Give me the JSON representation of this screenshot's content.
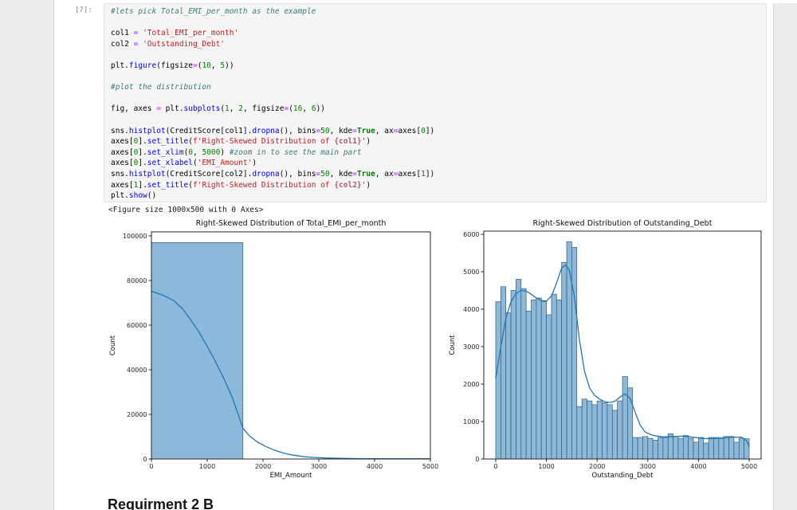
{
  "theme": {
    "margin_bg": "#ececec",
    "cell_bg": "#f5f5f5",
    "bar_fill": "#8cb9da",
    "bar_edge": "#3a5a70",
    "kde_line": "#1f77b4"
  },
  "notebook": {
    "execution_count": "[7]:",
    "figure_text": "<Figure size 1000x500 with 0 Axes>",
    "heading": "Requirment 2 B",
    "code_lines": [
      [
        [
          "com",
          "#lets pick Total_EMI_per_month as the example"
        ]
      ],
      [],
      [
        [
          "n",
          "col1 "
        ],
        [
          "op",
          "="
        ],
        [
          "n",
          " "
        ],
        [
          "s",
          "'Total_EMI_per_month'"
        ]
      ],
      [
        [
          "n",
          "col2 "
        ],
        [
          "op",
          "="
        ],
        [
          "n",
          " "
        ],
        [
          "s",
          "'Outstanding_Debt'"
        ]
      ],
      [],
      [
        [
          "n",
          "plt."
        ],
        [
          "fn",
          "figure"
        ],
        [
          "n",
          "(figsize"
        ],
        [
          "op",
          "="
        ],
        [
          "n",
          "("
        ],
        [
          "num",
          "10"
        ],
        [
          "n",
          ", "
        ],
        [
          "num",
          "5"
        ],
        [
          "n",
          "))"
        ]
      ],
      [],
      [
        [
          "com",
          "#plot the distribution"
        ]
      ],
      [],
      [
        [
          "n",
          "fig, axes "
        ],
        [
          "op",
          "="
        ],
        [
          "n",
          " plt."
        ],
        [
          "fn",
          "subplots"
        ],
        [
          "n",
          "("
        ],
        [
          "num",
          "1"
        ],
        [
          "n",
          ", "
        ],
        [
          "num",
          "2"
        ],
        [
          "n",
          ", figsize"
        ],
        [
          "op",
          "="
        ],
        [
          "n",
          "("
        ],
        [
          "num",
          "16"
        ],
        [
          "n",
          ", "
        ],
        [
          "num",
          "6"
        ],
        [
          "n",
          "))"
        ]
      ],
      [],
      [
        [
          "n",
          "sns."
        ],
        [
          "fn",
          "histplot"
        ],
        [
          "n",
          "(CreditScore[col1]."
        ],
        [
          "fn",
          "dropna"
        ],
        [
          "n",
          "(), bins"
        ],
        [
          "op",
          "="
        ],
        [
          "num",
          "50"
        ],
        [
          "n",
          ", kde"
        ],
        [
          "op",
          "="
        ],
        [
          "kw",
          "True"
        ],
        [
          "n",
          ", ax"
        ],
        [
          "op",
          "="
        ],
        [
          "n",
          "axes["
        ],
        [
          "num",
          "0"
        ],
        [
          "n",
          "])"
        ]
      ],
      [
        [
          "n",
          "axes["
        ],
        [
          "num",
          "0"
        ],
        [
          "n",
          "]."
        ],
        [
          "fn",
          "set_title"
        ],
        [
          "n",
          "("
        ],
        [
          "s",
          "f'Right-Skewed Distribution of "
        ],
        [
          "fs",
          "{col1}"
        ],
        [
          "s",
          "'"
        ],
        [
          "n",
          ")"
        ]
      ],
      [
        [
          "n",
          "axes["
        ],
        [
          "num",
          "0"
        ],
        [
          "n",
          "]."
        ],
        [
          "fn",
          "set_xlim"
        ],
        [
          "n",
          "("
        ],
        [
          "num",
          "0"
        ],
        [
          "n",
          ", "
        ],
        [
          "num",
          "5000"
        ],
        [
          "n",
          ") "
        ],
        [
          "com",
          "#zoom in to see the main part"
        ]
      ],
      [
        [
          "n",
          "axes["
        ],
        [
          "num",
          "0"
        ],
        [
          "n",
          "]."
        ],
        [
          "fn",
          "set_xlabel"
        ],
        [
          "n",
          "("
        ],
        [
          "s",
          "'EMI_Amount'"
        ],
        [
          "n",
          ")"
        ]
      ],
      [
        [
          "n",
          "sns."
        ],
        [
          "fn",
          "histplot"
        ],
        [
          "n",
          "(CreditScore[col2]."
        ],
        [
          "fn",
          "dropna"
        ],
        [
          "n",
          "(), bins"
        ],
        [
          "op",
          "="
        ],
        [
          "num",
          "50"
        ],
        [
          "n",
          ", kde"
        ],
        [
          "op",
          "="
        ],
        [
          "kw",
          "True"
        ],
        [
          "n",
          ", ax"
        ],
        [
          "op",
          "="
        ],
        [
          "n",
          "axes["
        ],
        [
          "num",
          "1"
        ],
        [
          "n",
          "])"
        ]
      ],
      [
        [
          "n",
          "axes["
        ],
        [
          "num",
          "1"
        ],
        [
          "n",
          "]."
        ],
        [
          "fn",
          "set_title"
        ],
        [
          "n",
          "("
        ],
        [
          "s",
          "f'Right-Skewed Distribution of "
        ],
        [
          "fs",
          "{col2}"
        ],
        [
          "s",
          "'"
        ],
        [
          "n",
          ")"
        ]
      ],
      [
        [
          "n",
          "plt."
        ],
        [
          "fn",
          "show"
        ],
        [
          "n",
          "()"
        ]
      ]
    ]
  },
  "chart_data": [
    {
      "type": "bar",
      "subtype": "histogram+kde",
      "title": "Right-Skewed Distribution of Total_EMI_per_month",
      "xlabel": "EMI_Amount",
      "ylabel": "Count",
      "xlim": [
        0,
        5000
      ],
      "ylim": [
        0,
        100000
      ],
      "xticks": [
        0,
        1000,
        2000,
        3000,
        4000,
        5000
      ],
      "yticks": [
        0,
        20000,
        40000,
        60000,
        80000,
        100000
      ],
      "grid": false,
      "bar_color": "#8cb9da",
      "bar_edge": "#3a5a70",
      "line_color": "#1f77b4",
      "bars": [
        {
          "x0": 0,
          "x1": 1640,
          "count": 97000
        }
      ],
      "kde_line": [
        [
          0,
          75200
        ],
        [
          200,
          73500
        ],
        [
          400,
          71000
        ],
        [
          550,
          67500
        ],
        [
          700,
          62500
        ],
        [
          850,
          57000
        ],
        [
          1000,
          50500
        ],
        [
          1150,
          43500
        ],
        [
          1300,
          36000
        ],
        [
          1450,
          27500
        ],
        [
          1640,
          13800
        ],
        [
          1750,
          10500
        ],
        [
          1900,
          7600
        ],
        [
          2050,
          5600
        ],
        [
          2200,
          4000
        ],
        [
          2350,
          2800
        ],
        [
          2500,
          1900
        ],
        [
          2700,
          1150
        ],
        [
          2900,
          700
        ],
        [
          3100,
          450
        ],
        [
          3400,
          280
        ],
        [
          3700,
          190
        ],
        [
          4000,
          150
        ],
        [
          4500,
          110
        ],
        [
          5000,
          90
        ]
      ]
    },
    {
      "type": "bar",
      "subtype": "histogram+kde",
      "title": "Right-Skewed Distribution of Outstanding_Debt",
      "xlabel": "Outstanding_Debt",
      "ylabel": "Count",
      "xlim": [
        0,
        5000
      ],
      "ylim": [
        0,
        6000
      ],
      "xticks": [
        0,
        1000,
        2000,
        3000,
        4000,
        5000
      ],
      "yticks": [
        0,
        1000,
        2000,
        3000,
        4000,
        5000,
        6000
      ],
      "grid": false,
      "bar_color": "#8cb9da",
      "bar_edge": "#3a5a70",
      "line_color": "#1f77b4",
      "bin_start": 0,
      "bin_width": 100,
      "bin_counts": [
        4200,
        4600,
        3900,
        4500,
        4800,
        4550,
        3950,
        4250,
        4300,
        4200,
        3850,
        4400,
        4250,
        5250,
        5800,
        5650,
        1400,
        1600,
        1550,
        1450,
        1550,
        1500,
        1450,
        1300,
        1550,
        2200,
        1900,
        575,
        575,
        600,
        550,
        500,
        575,
        575,
        675,
        600,
        550,
        625,
        550,
        450,
        575,
        425,
        575,
        575,
        550,
        600,
        600,
        450,
        550,
        540
      ],
      "kde_line": [
        [
          0,
          2150
        ],
        [
          100,
          3000
        ],
        [
          200,
          3750
        ],
        [
          300,
          4200
        ],
        [
          400,
          4420
        ],
        [
          500,
          4500
        ],
        [
          600,
          4480
        ],
        [
          700,
          4400
        ],
        [
          800,
          4300
        ],
        [
          900,
          4230
        ],
        [
          1000,
          4220
        ],
        [
          1100,
          4350
        ],
        [
          1200,
          4700
        ],
        [
          1300,
          5100
        ],
        [
          1380,
          5180
        ],
        [
          1450,
          5050
        ],
        [
          1550,
          4350
        ],
        [
          1650,
          3200
        ],
        [
          1750,
          2350
        ],
        [
          1850,
          1900
        ],
        [
          1950,
          1700
        ],
        [
          2050,
          1600
        ],
        [
          2150,
          1530
        ],
        [
          2250,
          1510
        ],
        [
          2350,
          1540
        ],
        [
          2450,
          1650
        ],
        [
          2550,
          1740
        ],
        [
          2650,
          1620
        ],
        [
          2750,
          1250
        ],
        [
          2850,
          900
        ],
        [
          2950,
          720
        ],
        [
          3100,
          630
        ],
        [
          3300,
          590
        ],
        [
          3500,
          600
        ],
        [
          3700,
          610
        ],
        [
          3900,
          580
        ],
        [
          4100,
          545
        ],
        [
          4300,
          545
        ],
        [
          4500,
          570
        ],
        [
          4700,
          585
        ],
        [
          4850,
          580
        ],
        [
          4950,
          490
        ],
        [
          5000,
          330
        ]
      ]
    }
  ]
}
